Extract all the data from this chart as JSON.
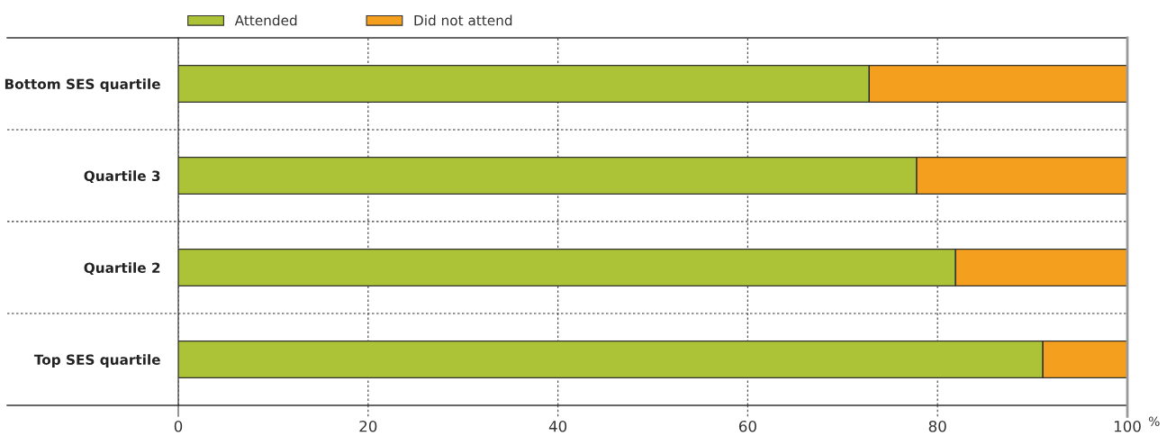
{
  "chart_data": {
    "type": "bar",
    "orientation": "horizontal",
    "stacked": true,
    "categories": [
      "Bottom SES quartile",
      "Quartile 3",
      "Quartile 2",
      "Top SES quartile"
    ],
    "series": [
      {
        "name": "Attended",
        "color": "#acc338",
        "values": [
          72.8,
          77.8,
          81.9,
          91.1
        ]
      },
      {
        "name": "Did not attend",
        "color": "#f59f1e",
        "values": [
          27.2,
          22.2,
          18.1,
          8.9
        ]
      }
    ],
    "xlabel": "%",
    "xlim": [
      0,
      100
    ],
    "xticks": [
      0,
      20,
      40,
      60,
      80,
      100
    ],
    "grid": "x",
    "legend": "top left"
  }
}
